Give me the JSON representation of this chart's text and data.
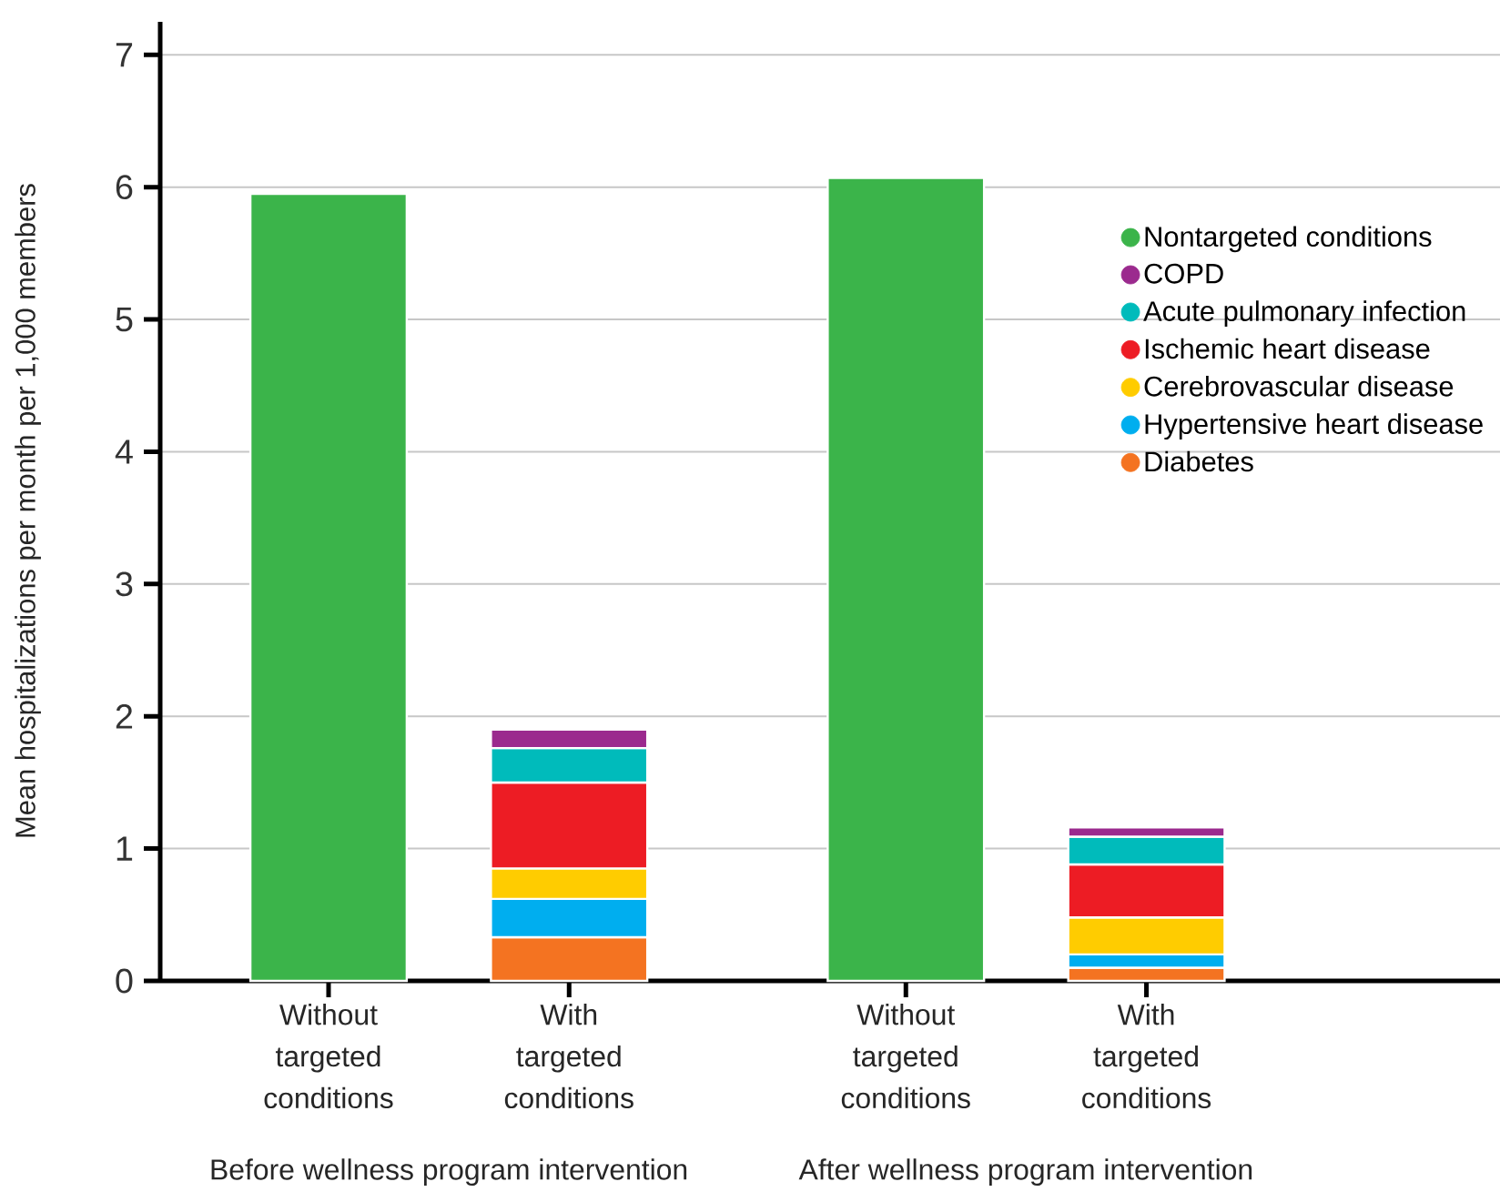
{
  "chart_data": {
    "type": "bar",
    "stacked": true,
    "ylabel": "Mean hospitalizations per month per 1,000 members",
    "categories": [
      "Without targeted conditions",
      "With targeted conditions",
      "Without targeted conditions",
      "With targeted conditions"
    ],
    "series": [
      {
        "name": "Diabetes",
        "color": "#f47321",
        "values": [
          null,
          0.33,
          null,
          0.1
        ]
      },
      {
        "name": "Hypertensive heart disease",
        "color": "#00aeef",
        "values": [
          null,
          0.29,
          null,
          0.1
        ]
      },
      {
        "name": "Cerebrovascular disease",
        "color": "#ffcc00",
        "values": [
          null,
          0.23,
          null,
          0.28
        ]
      },
      {
        "name": "Ischemic heart disease",
        "color": "#ed1c24",
        "values": [
          null,
          0.65,
          null,
          0.4
        ]
      },
      {
        "name": "Acute pulmonary infection",
        "color": "#00bbbb",
        "values": [
          null,
          0.26,
          null,
          0.21
        ]
      },
      {
        "name": "COPD",
        "color": "#9b2a8e",
        "values": [
          null,
          0.14,
          null,
          0.07
        ]
      },
      {
        "name": "Nontargeted conditions",
        "color": "#3bb44a",
        "values": [
          5.95,
          null,
          6.07,
          null
        ]
      }
    ],
    "annotations": [
      "Before wellness program intervention",
      "After wellness program intervention"
    ],
    "ylim": [
      0,
      7.25
    ],
    "yticks": [
      0,
      1,
      2,
      3,
      4,
      5,
      6,
      7
    ],
    "grid": "y",
    "legend": "top right"
  }
}
